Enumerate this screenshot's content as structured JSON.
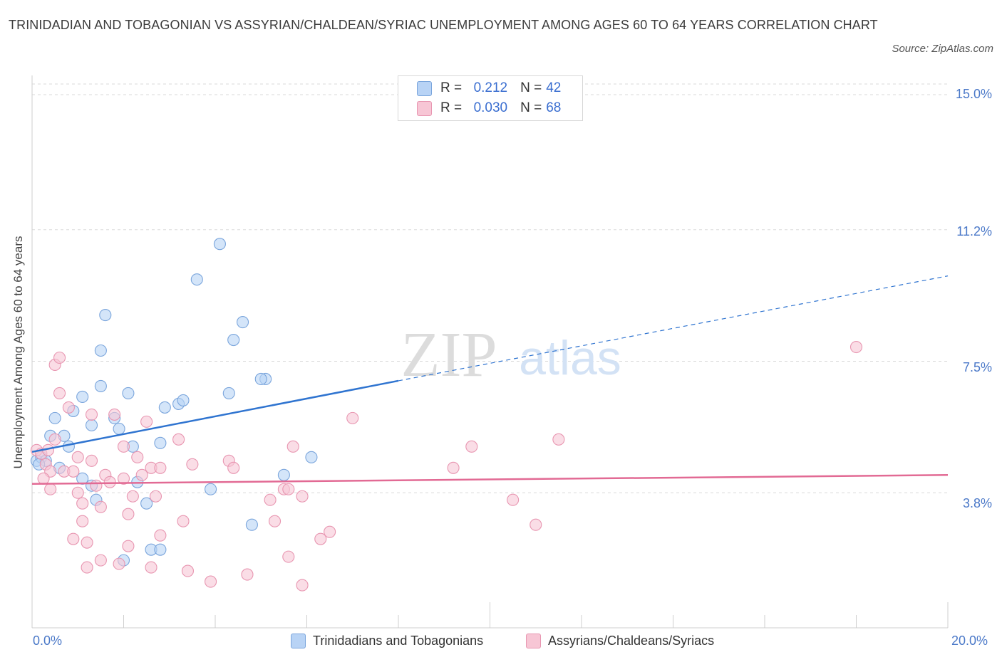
{
  "title": "TRINIDADIAN AND TOBAGONIAN VS ASSYRIAN/CHALDEAN/SYRIAC UNEMPLOYMENT AMONG AGES 60 TO 64 YEARS CORRELATION CHART",
  "source": "Source: ZipAtlas.com",
  "watermark": {
    "zip": "ZIP",
    "atlas": "atlas"
  },
  "legend": {
    "rows": [
      {
        "r_label": "R =",
        "r_value": "0.212",
        "n_label": "N =",
        "n_value": "42"
      },
      {
        "r_label": "R =",
        "r_value": "0.030",
        "n_label": "N =",
        "n_value": "68"
      }
    ]
  },
  "colors": {
    "blue_fill": "#b8d3f5",
    "blue_stroke": "#7aa5dc",
    "blue_line": "#2f74d0",
    "pink_fill": "#f7c6d5",
    "pink_stroke": "#e896b1",
    "pink_line": "#e26a94",
    "grid": "#d9d9d9",
    "tick_text": "#4a78c8"
  },
  "chart_data": {
    "type": "scatter",
    "title": "TRINIDADIAN AND TOBAGONIAN VS ASSYRIAN/CHALDEAN/SYRIAC UNEMPLOYMENT AMONG AGES 60 TO 64 YEARS CORRELATION CHART",
    "xlabel": "",
    "ylabel": "Unemployment Among Ages 60 to 64 years",
    "xlim": [
      0,
      20
    ],
    "ylim": [
      0,
      15.3
    ],
    "x_tick_labels": [
      "0.0%",
      "20.0%"
    ],
    "y_ticks": [
      3.8,
      7.5,
      11.2,
      15.0
    ],
    "y_tick_labels": [
      "3.8%",
      "7.5%",
      "11.2%",
      "15.0%"
    ],
    "grid": true,
    "legend_position": "top-center",
    "series": [
      {
        "name": "Trinidadians and Tobagonians",
        "trend": {
          "x": [
            0,
            8
          ],
          "y": [
            4.95,
            6.95
          ],
          "dashed_to": [
            20,
            9.9
          ]
        },
        "points": [
          [
            0.1,
            4.7
          ],
          [
            0.2,
            4.8
          ],
          [
            0.3,
            4.7
          ],
          [
            0.4,
            5.4
          ],
          [
            0.5,
            5.9
          ],
          [
            0.6,
            4.5
          ],
          [
            0.7,
            5.4
          ],
          [
            0.8,
            5.1
          ],
          [
            0.9,
            6.1
          ],
          [
            1.1,
            4.2
          ],
          [
            1.1,
            6.5
          ],
          [
            1.3,
            4.0
          ],
          [
            1.3,
            5.7
          ],
          [
            1.4,
            3.6
          ],
          [
            1.5,
            6.8
          ],
          [
            1.5,
            7.8
          ],
          [
            1.6,
            8.8
          ],
          [
            1.8,
            5.9
          ],
          [
            1.9,
            5.6
          ],
          [
            2.1,
            6.6
          ],
          [
            2.0,
            1.9
          ],
          [
            2.2,
            5.1
          ],
          [
            2.3,
            4.1
          ],
          [
            2.5,
            3.5
          ],
          [
            2.6,
            2.2
          ],
          [
            2.8,
            2.2
          ],
          [
            2.8,
            5.2
          ],
          [
            2.9,
            6.2
          ],
          [
            3.2,
            6.3
          ],
          [
            3.3,
            6.4
          ],
          [
            3.6,
            9.8
          ],
          [
            3.9,
            3.9
          ],
          [
            4.1,
            10.8
          ],
          [
            4.3,
            6.6
          ],
          [
            4.4,
            8.1
          ],
          [
            4.6,
            8.6
          ],
          [
            4.8,
            2.9
          ],
          [
            5.1,
            7.0
          ],
          [
            5.0,
            7.0
          ],
          [
            5.5,
            4.3
          ],
          [
            6.1,
            4.8
          ],
          [
            0.15,
            4.6
          ]
        ]
      },
      {
        "name": "Assyrians/Chaldeans/Syriacs",
        "trend": {
          "x": [
            0,
            20
          ],
          "y": [
            4.05,
            4.3
          ]
        },
        "points": [
          [
            0.1,
            5.0
          ],
          [
            0.2,
            4.9
          ],
          [
            0.3,
            4.6
          ],
          [
            0.4,
            4.4
          ],
          [
            0.4,
            3.9
          ],
          [
            0.5,
            5.3
          ],
          [
            0.5,
            7.4
          ],
          [
            0.6,
            7.6
          ],
          [
            0.6,
            6.6
          ],
          [
            0.7,
            4.4
          ],
          [
            0.8,
            6.2
          ],
          [
            0.9,
            4.4
          ],
          [
            0.9,
            2.5
          ],
          [
            1.0,
            3.8
          ],
          [
            1.0,
            4.8
          ],
          [
            1.1,
            3.5
          ],
          [
            1.1,
            3.0
          ],
          [
            1.2,
            1.7
          ],
          [
            1.2,
            2.4
          ],
          [
            1.3,
            6.0
          ],
          [
            1.3,
            4.7
          ],
          [
            1.4,
            4.0
          ],
          [
            1.5,
            3.4
          ],
          [
            1.5,
            1.9
          ],
          [
            1.6,
            4.3
          ],
          [
            1.7,
            4.1
          ],
          [
            1.8,
            6.0
          ],
          [
            1.9,
            1.8
          ],
          [
            2.0,
            5.1
          ],
          [
            2.0,
            4.2
          ],
          [
            2.1,
            3.2
          ],
          [
            2.1,
            2.3
          ],
          [
            2.2,
            3.7
          ],
          [
            2.3,
            4.8
          ],
          [
            2.4,
            4.3
          ],
          [
            2.5,
            5.8
          ],
          [
            2.6,
            4.5
          ],
          [
            2.6,
            1.7
          ],
          [
            2.7,
            3.7
          ],
          [
            2.8,
            2.6
          ],
          [
            2.8,
            4.5
          ],
          [
            3.2,
            5.3
          ],
          [
            3.3,
            3.0
          ],
          [
            3.4,
            1.6
          ],
          [
            3.5,
            4.6
          ],
          [
            3.9,
            1.3
          ],
          [
            4.3,
            4.7
          ],
          [
            4.4,
            4.5
          ],
          [
            4.7,
            1.5
          ],
          [
            5.2,
            3.6
          ],
          [
            5.3,
            3.0
          ],
          [
            5.5,
            3.9
          ],
          [
            5.6,
            2.0
          ],
          [
            5.6,
            3.9
          ],
          [
            5.7,
            5.1
          ],
          [
            5.9,
            1.2
          ],
          [
            5.9,
            3.7
          ],
          [
            6.3,
            2.5
          ],
          [
            6.5,
            2.7
          ],
          [
            7.0,
            5.9
          ],
          [
            9.2,
            4.5
          ],
          [
            9.6,
            5.1
          ],
          [
            10.5,
            3.6
          ],
          [
            11.0,
            2.9
          ],
          [
            11.5,
            5.3
          ],
          [
            18.0,
            7.9
          ],
          [
            0.25,
            4.2
          ],
          [
            0.35,
            5.0
          ]
        ]
      }
    ]
  },
  "bottom_legend": {
    "series1": "Trinidadians and Tobagonians",
    "series2": "Assyrians/Chaldeans/Syriacs"
  }
}
